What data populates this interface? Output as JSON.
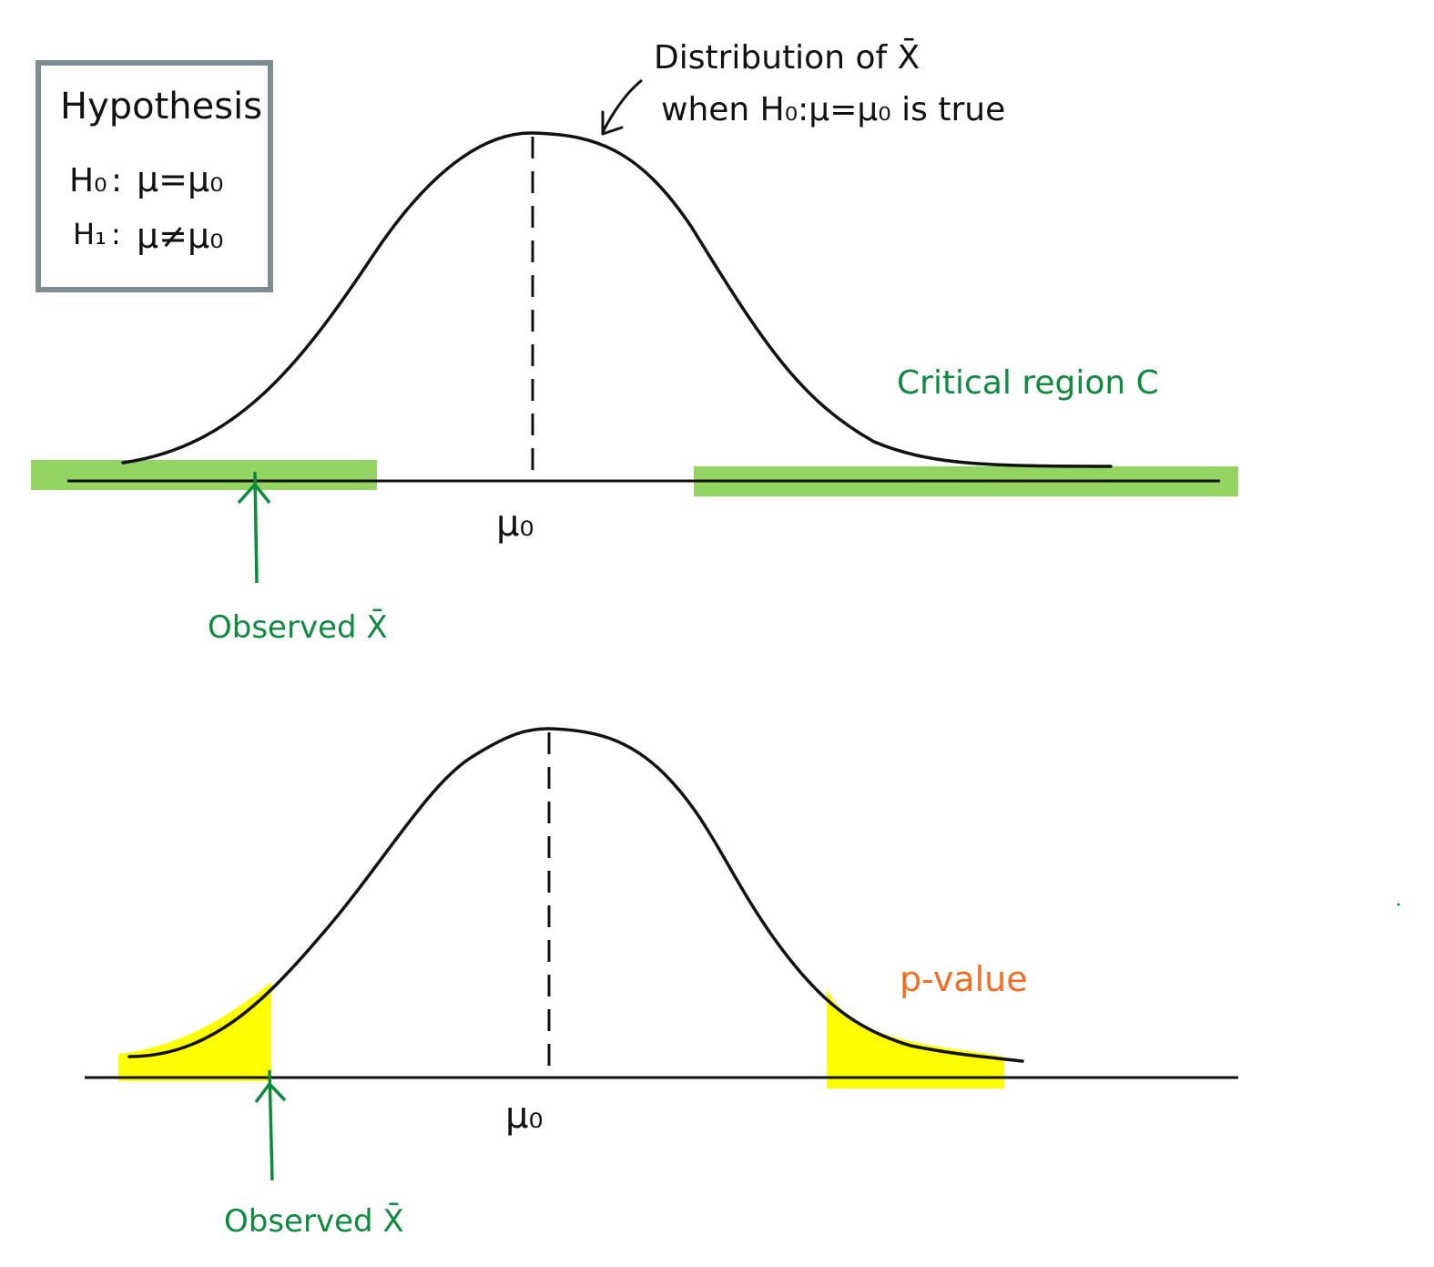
{
  "colors": {
    "ink": "#111111",
    "green_label": "#0d8a3c",
    "critical_region": "#94d463",
    "p_value_shade": "#ffff00",
    "orange_label": "#f26d21",
    "box_border": "#7c8c90"
  },
  "hypothesis_box": {
    "title": "Hypothesis",
    "h0_label": "H₀",
    "h0_expr": "μ=μ₀",
    "h1_label": "H₁",
    "h1_expr": "μ≠μ₀"
  },
  "top_panel": {
    "annotation_line1": "Distribution of X̄",
    "annotation_line2": "when H₀:μ=μ₀ is true",
    "critical_region_label": "Critical region C",
    "center_label": "μ₀",
    "observed_label": "Observed X̄"
  },
  "bottom_panel": {
    "p_value_label": "p-value",
    "center_label": "μ₀",
    "observed_label": "Observed X̄"
  }
}
